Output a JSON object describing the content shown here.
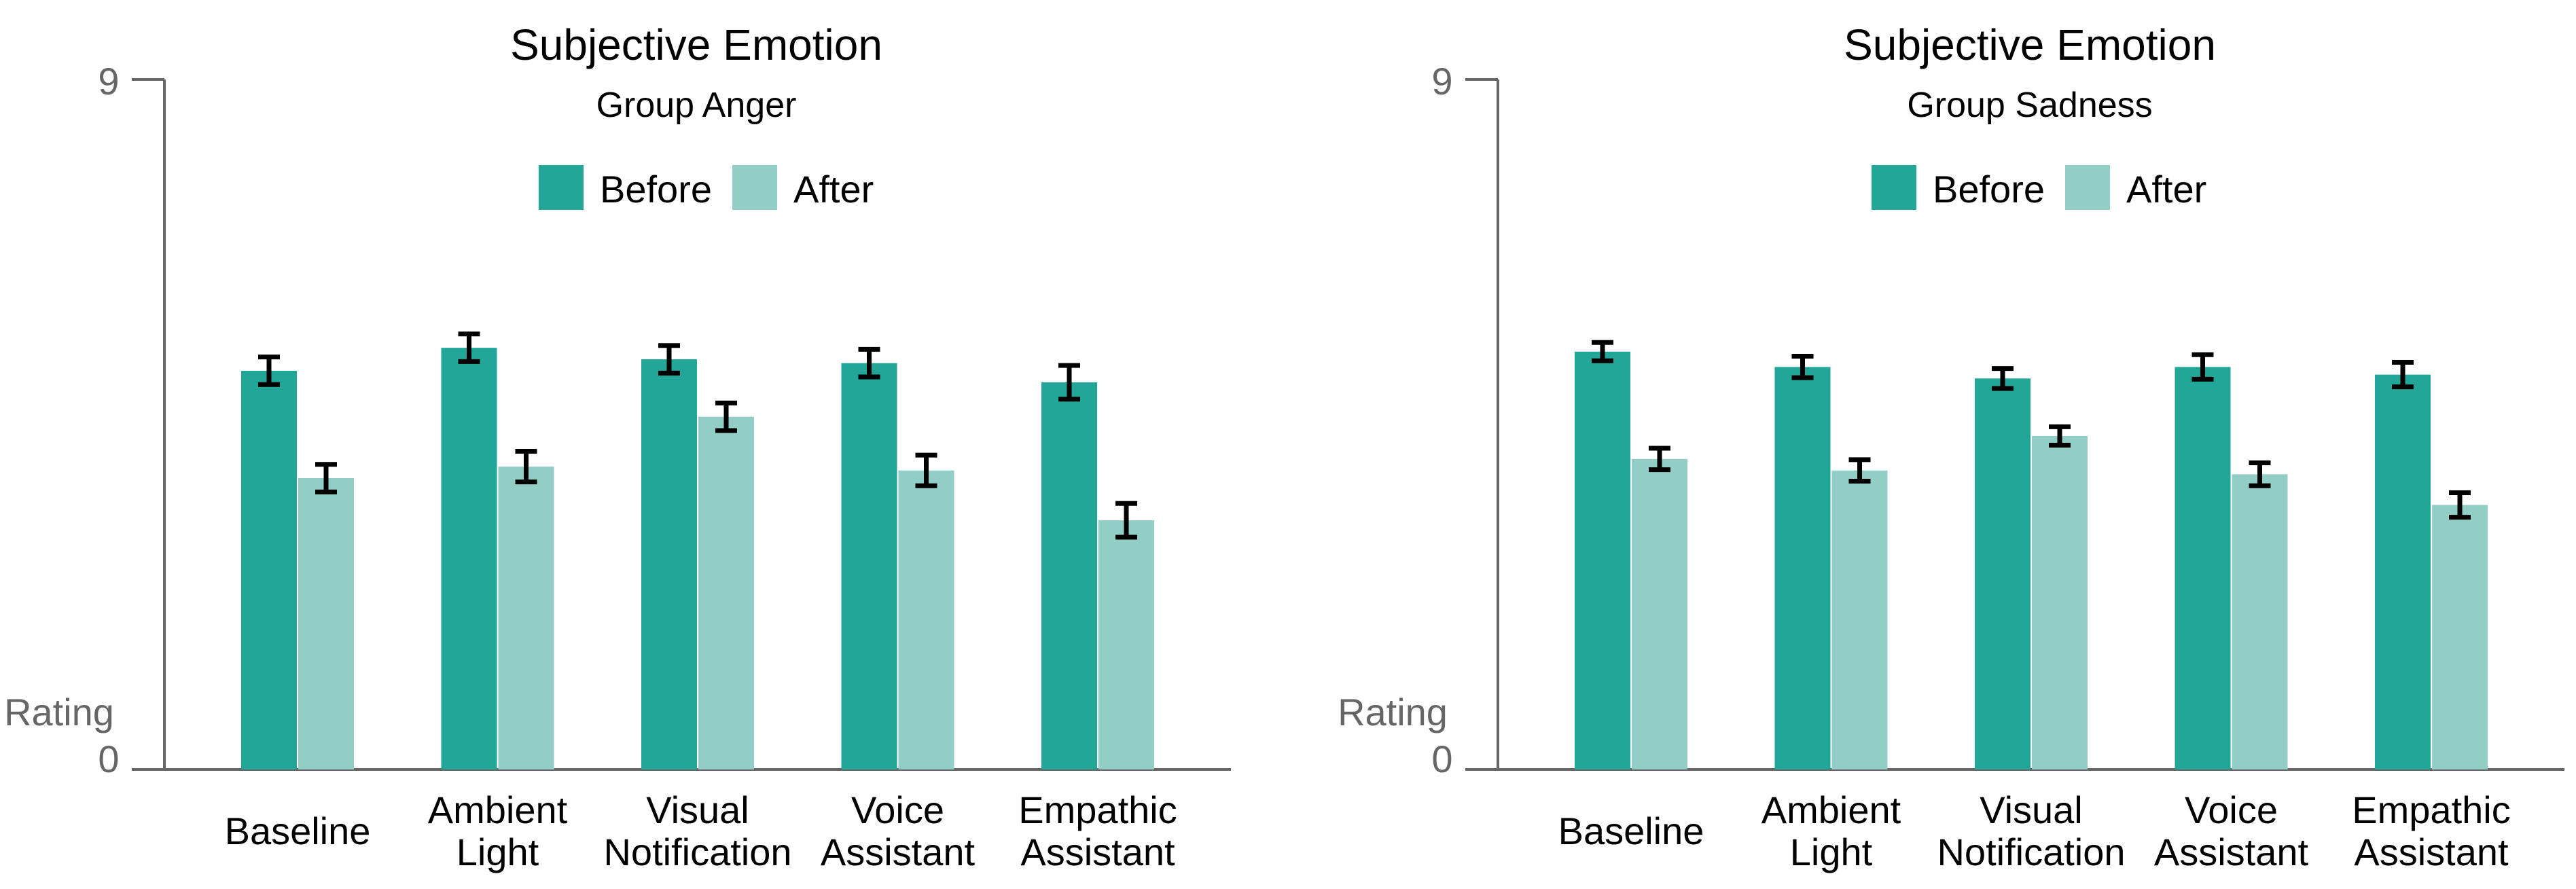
{
  "chart_data": [
    {
      "type": "bar",
      "title": "Subjective Emotion",
      "subtitle": "Group Anger",
      "ylabel": "Rating",
      "ylim": [
        0,
        9
      ],
      "yticks": [
        "0",
        "9"
      ],
      "categories": [
        [
          "Baseline"
        ],
        [
          "Ambient",
          "Light"
        ],
        [
          "Visual",
          "Notification"
        ],
        [
          "Voice",
          "Assistant"
        ],
        [
          "Empathic",
          "Assistant"
        ]
      ],
      "series": [
        {
          "name": "Before",
          "color": "#22a697",
          "values": [
            5.2,
            5.5,
            5.35,
            5.3,
            5.05
          ],
          "errors": [
            0.18,
            0.18,
            0.18,
            0.18,
            0.22
          ]
        },
        {
          "name": "After",
          "color": "#92cdc6",
          "values": [
            3.8,
            3.95,
            4.6,
            3.9,
            3.25
          ],
          "errors": [
            0.18,
            0.2,
            0.18,
            0.2,
            0.22
          ]
        }
      ]
    },
    {
      "type": "bar",
      "title": "Subjective Emotion",
      "subtitle": "Group Sadness",
      "ylabel": "Rating",
      "ylim": [
        0,
        9
      ],
      "yticks": [
        "0",
        "9"
      ],
      "categories": [
        [
          "Baseline"
        ],
        [
          "Ambient",
          "Light"
        ],
        [
          "Visual",
          "Notification"
        ],
        [
          "Voice",
          "Assistant"
        ],
        [
          "Empathic",
          "Assistant"
        ]
      ],
      "series": [
        {
          "name": "Before",
          "color": "#22a697",
          "values": [
            5.45,
            5.25,
            5.1,
            5.25,
            5.15
          ],
          "errors": [
            0.12,
            0.14,
            0.13,
            0.16,
            0.16
          ]
        },
        {
          "name": "After",
          "color": "#92cdc6",
          "values": [
            4.05,
            3.9,
            4.35,
            3.85,
            3.45
          ],
          "errors": [
            0.14,
            0.14,
            0.12,
            0.15,
            0.16
          ]
        }
      ]
    }
  ]
}
